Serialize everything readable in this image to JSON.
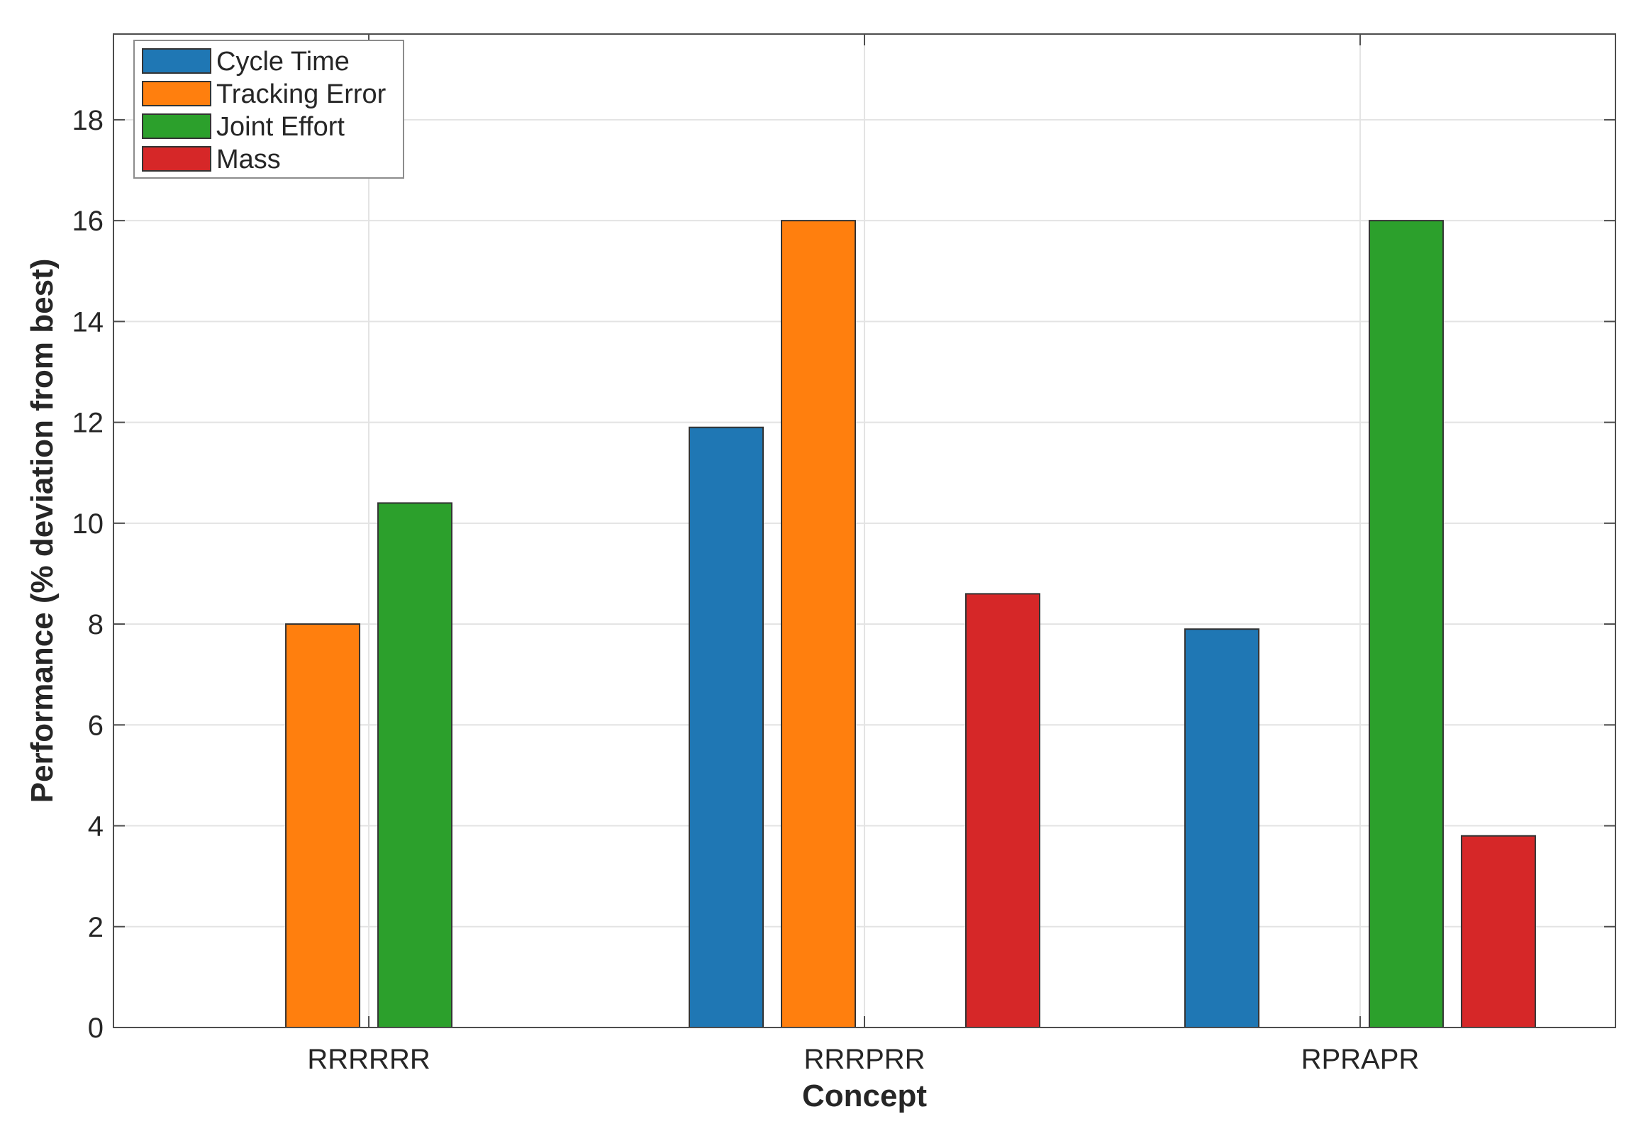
{
  "chart_data": {
    "type": "bar",
    "title": "",
    "xlabel": "Concept",
    "ylabel": "Performance (% deviation from best)",
    "categories": [
      "RRRRRR",
      "RRRPRR",
      "RPRAPR"
    ],
    "series": [
      {
        "name": "Cycle Time",
        "color": "#1f77b4",
        "values": [
          0,
          11.9,
          7.9
        ]
      },
      {
        "name": "Tracking Error",
        "color": "#ff7f0e",
        "values": [
          8.0,
          16.0,
          0
        ]
      },
      {
        "name": "Joint Effort",
        "color": "#2ca02c",
        "values": [
          10.4,
          0,
          16.0
        ]
      },
      {
        "name": "Mass",
        "color": "#d62728",
        "values": [
          0,
          8.6,
          3.8
        ]
      }
    ],
    "ylim": [
      0,
      19.7
    ],
    "yticks": [
      0,
      2,
      4,
      6,
      8,
      10,
      12,
      14,
      16,
      18
    ],
    "grid": true,
    "legend_position": "top-left"
  }
}
